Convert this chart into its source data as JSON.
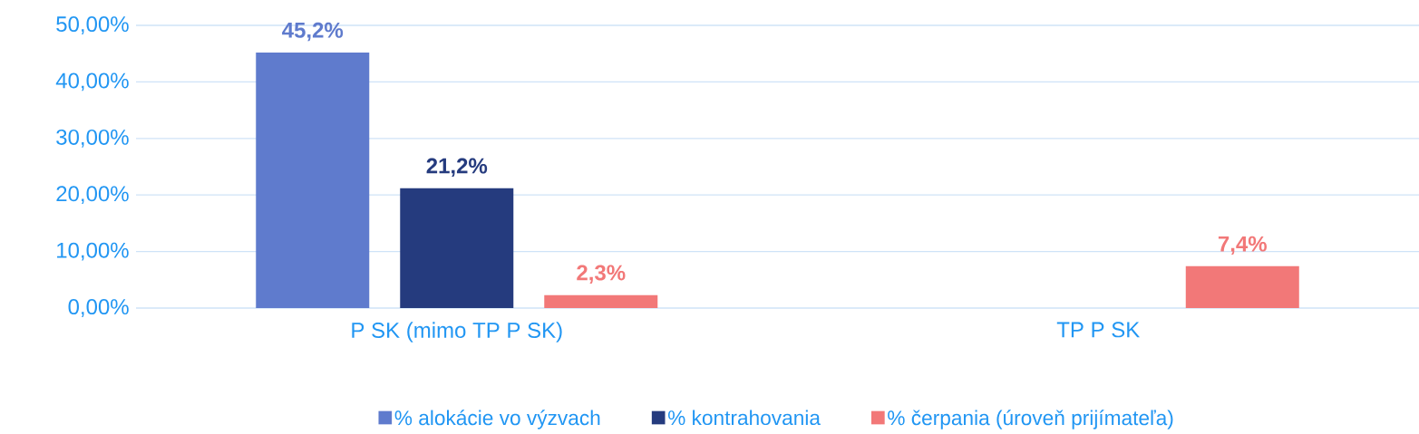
{
  "chart_data": {
    "type": "bar",
    "categories": [
      "P SK (mimo TP P SK)",
      "TP P SK"
    ],
    "series": [
      {
        "name": "% alokácie vo výzvach",
        "color": "#5f7bcd",
        "values": [
          45.2,
          null
        ],
        "value_labels": [
          "45,2%",
          null
        ]
      },
      {
        "name": "% kontrahovania",
        "color": "#253b7e",
        "values": [
          21.2,
          null
        ],
        "value_labels": [
          "21,2%",
          null
        ]
      },
      {
        "name": "% čerpania (úroveň prijímateľa)",
        "color": "#f27878",
        "values": [
          2.3,
          7.4
        ],
        "value_labels": [
          "2,3%",
          "7,4%"
        ]
      }
    ],
    "ylim": [
      0,
      50
    ],
    "yticks": [
      {
        "value": 0,
        "label": "0,00%"
      },
      {
        "value": 10,
        "label": "10,00%"
      },
      {
        "value": 20,
        "label": "20,00%"
      },
      {
        "value": 30,
        "label": "30,00%"
      },
      {
        "value": 40,
        "label": "40,00%"
      },
      {
        "value": 50,
        "label": "50,00%"
      }
    ],
    "grid": "y",
    "legend": "bottom"
  }
}
